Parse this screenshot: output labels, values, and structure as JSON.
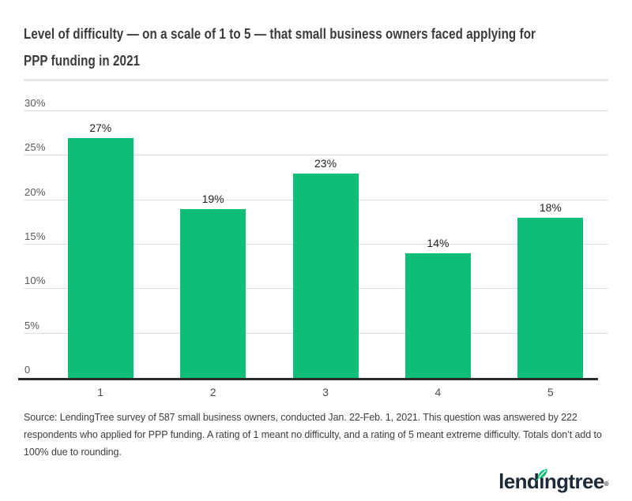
{
  "header": {
    "title_lines": [
      "Level of difficulty — on a scale of 1 to 5 — that small business owners faced applying for",
      "PPP funding in 2021"
    ]
  },
  "chart_data": {
    "type": "bar",
    "title": "Level of difficulty — on a scale of 1 to 5 — that small business owners faced applying for PPP funding in 2021",
    "categories": [
      "1",
      "2",
      "3",
      "4",
      "5"
    ],
    "values": [
      27,
      19,
      23,
      14,
      18
    ],
    "value_labels": [
      "27%",
      "19%",
      "23%",
      "14%",
      "18%"
    ],
    "xlabel": "",
    "ylabel": "",
    "ylim": [
      0,
      30
    ],
    "y_ticks": [
      {
        "value": 30,
        "label": "30%",
        "line": true
      },
      {
        "value": 25,
        "label": "25%",
        "line": true
      },
      {
        "value": 20,
        "label": "20%",
        "line": true
      },
      {
        "value": 15,
        "label": "15%",
        "line": true
      },
      {
        "value": 10,
        "label": "10%",
        "line": true
      },
      {
        "value": 5,
        "label": "5%",
        "line": true
      },
      {
        "value": 0,
        "label": "0",
        "line": false
      }
    ],
    "grid": true,
    "legend": false,
    "bar_color": "#0ebd77"
  },
  "footer": {
    "source": "Source: LendingTree survey of 587 small business owners, conducted Jan. 22-Feb. 1, 2021. This question was answered by 222 respondents who applied for PPP funding. A rating of 1 meant no difficulty, and a rating of 5 meant extreme difficulty. Totals don’t add to 100% due to rounding.",
    "logo": {
      "text": "lendingtree",
      "mark": "®"
    }
  },
  "colors": {
    "brand_green": "#0ebd77",
    "logo_navy": "#1d2935",
    "gridline": "#dcdcdc",
    "axis": "#2b2b2b"
  }
}
